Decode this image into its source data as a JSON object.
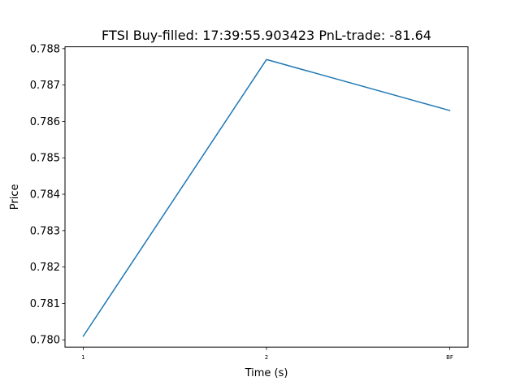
{
  "chart_data": {
    "type": "line",
    "title": "FTSI  Buy-filled:  17:39:55.903423  PnL-trade:  -81.64",
    "xlabel": "Time (s)",
    "ylabel": "Price",
    "categories": [
      "1",
      "2",
      "BF"
    ],
    "series": [
      {
        "values": [
          0.7801,
          0.7877,
          0.7863
        ],
        "color": "#1f77b4"
      }
    ],
    "ylim": [
      0.7798,
      0.78805
    ],
    "yticks": [
      "0.780",
      "0.781",
      "0.782",
      "0.783",
      "0.784",
      "0.785",
      "0.786",
      "0.787",
      "0.788"
    ],
    "grid": false,
    "legend": "none"
  }
}
